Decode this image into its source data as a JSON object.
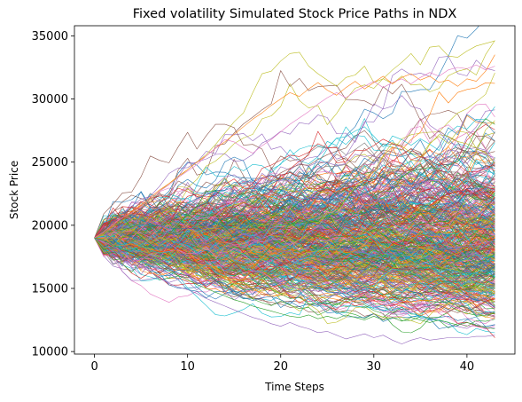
{
  "chart_data": {
    "type": "line",
    "title": "Fixed volatility Simulated Stock Price Paths in NDX",
    "xlabel": "Time Steps",
    "ylabel": "Stock Price",
    "xlim": [
      -2.15,
      45.15
    ],
    "ylim": [
      9800,
      35800
    ],
    "x_ticks": [
      0,
      10,
      20,
      30,
      40
    ],
    "y_ticks": [
      10000,
      15000,
      20000,
      25000,
      30000,
      35000
    ],
    "x_tick_labels": [
      "0",
      "10",
      "20",
      "30",
      "40"
    ],
    "y_tick_labels": [
      "10000",
      "15000",
      "20000",
      "25000",
      "30000",
      "35000"
    ],
    "n_steps": 43,
    "start_value": 19000,
    "n_paths": 500,
    "grid": false,
    "legend": "none",
    "palette": [
      "#1f77b4",
      "#ff7f0e",
      "#2ca02c",
      "#d62728",
      "#9467bd",
      "#8c564b",
      "#e377c2",
      "#7f7f7f",
      "#bcbd22",
      "#17becf"
    ],
    "highlighted_series": [
      {
        "color": "#bcbd22",
        "values": [
          19000,
          19300,
          19900,
          20400,
          21000,
          21500,
          22000,
          22700,
          23300,
          23800,
          24400,
          25000,
          25600,
          26400,
          27300,
          28200,
          28900,
          30500,
          32000,
          32200,
          33000,
          33600,
          33700,
          32600,
          32000,
          31500,
          31000,
          31700,
          31900,
          32600,
          31300,
          31600,
          32300,
          32900,
          33600,
          32700,
          34100,
          34200,
          33400,
          33300,
          33800,
          34200,
          34400,
          34600
        ]
      },
      {
        "color": "#ff7f0e",
        "values": [
          19000,
          19400,
          20000,
          20600,
          21100,
          21600,
          22200,
          22800,
          23300,
          23900,
          24400,
          25000,
          25500,
          26100,
          26600,
          27200,
          27800,
          28400,
          28900,
          29500,
          30000,
          30500,
          30200,
          30800,
          31300,
          30700,
          30300,
          30900,
          31400,
          30800,
          31300,
          31800,
          31200,
          31700,
          32000,
          31500,
          31800,
          31300,
          31500,
          31000,
          31600,
          31400,
          32200,
          33500
        ]
      },
      {
        "color": "#9467bd",
        "values": [
          19000,
          18700,
          18300,
          17900,
          17400,
          16800,
          16300,
          15800,
          15400,
          15100,
          14900,
          14600,
          14200,
          13900,
          13600,
          13300,
          13000,
          12700,
          12500,
          12200,
          12000,
          12300,
          12000,
          11800,
          11500,
          11600,
          11300,
          11000,
          11200,
          11400,
          11100,
          11300,
          10900,
          10600,
          10900,
          11100,
          10900,
          11000,
          11100,
          11100,
          11100,
          11200,
          11200,
          11300
        ]
      },
      {
        "color": "#2ca02c",
        "values": [
          19000,
          18800,
          18400,
          18100,
          17800,
          17500,
          17100,
          16800,
          16400,
          16000,
          15700,
          15300,
          15000,
          14700,
          14400,
          14100,
          13900,
          13600,
          13400,
          13200,
          13000,
          12800,
          12700,
          12900,
          12600,
          12800,
          12600,
          12900,
          12700,
          12500,
          12800,
          12500,
          12700,
          12400,
          12700,
          12500,
          12300,
          12500,
          12300,
          12100,
          12300,
          12100,
          11900,
          11800
        ]
      },
      {
        "color": "#e377c2",
        "values": [
          19000,
          19500,
          20100,
          20600,
          21000,
          21500,
          22100,
          22700,
          23200,
          23800,
          24300,
          24800,
          25500,
          26100,
          26800,
          26600,
          26100,
          25700,
          26300,
          26800,
          27400,
          28000,
          28500,
          29000,
          29600,
          30100,
          30500,
          30100,
          30600,
          31000,
          31400,
          30900,
          31300,
          31600,
          31200,
          31700,
          32100,
          31800,
          32300,
          32500,
          32400,
          32700,
          32300,
          32600
        ]
      }
    ]
  }
}
